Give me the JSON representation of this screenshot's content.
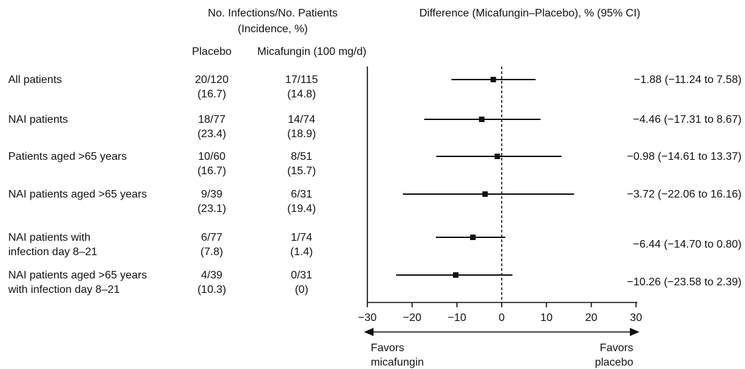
{
  "headers": {
    "counts_title_line1": "No. Infections/No. Patients",
    "counts_title_line2": "(Incidence, %)",
    "placebo": "Placebo",
    "micafungin": "Micafungin (100 mg/d)",
    "difference": "Difference (Micafungin–Placebo), % (95% CI)"
  },
  "rows": [
    {
      "label_lines": [
        "All patients"
      ],
      "placebo_count": "20/120",
      "placebo_pct": "(16.7)",
      "mica_count": "17/115",
      "mica_pct": "(14.8)",
      "ci_text": "−1.88 (−11.24 to 7.58)"
    },
    {
      "label_lines": [
        "NAI patients"
      ],
      "placebo_count": "18/77",
      "placebo_pct": "(23.4)",
      "mica_count": "14/74",
      "mica_pct": "(18.9)",
      "ci_text": "−4.46 (−17.31 to 8.67)"
    },
    {
      "label_lines": [
        "Patients aged >65 years"
      ],
      "placebo_count": "10/60",
      "placebo_pct": "(16.7)",
      "mica_count": "8/51",
      "mica_pct": "(15.7)",
      "ci_text": "−0.98 (−14.61 to 13.37)"
    },
    {
      "label_lines": [
        "NAI patients aged >65 years"
      ],
      "placebo_count": "9/39",
      "placebo_pct": "(23.1)",
      "mica_count": "6/31",
      "mica_pct": "(19.4)",
      "ci_text": "−3.72 (−22.06 to 16.16)"
    },
    {
      "label_lines": [
        "NAI patients with",
        "infection day 8–21"
      ],
      "placebo_count": "6/77",
      "placebo_pct": "(7.8)",
      "mica_count": "1/74",
      "mica_pct": "(1.4)",
      "ci_text": "−6.44 (−14.70 to 0.80)"
    },
    {
      "label_lines": [
        "NAI patients aged >65 years",
        "with infection day 8–21"
      ],
      "placebo_count": "4/39",
      "placebo_pct": "(10.3)",
      "mica_count": "0/31",
      "mica_pct": "(0)",
      "ci_text": "−10.26 (−23.58 to 2.39)"
    }
  ],
  "chart_data": {
    "type": "forest",
    "xlim": [
      -30,
      30
    ],
    "xticks": [
      -30,
      -20,
      -10,
      0,
      10,
      20,
      30
    ],
    "reference_line": 0,
    "categories": [
      "All patients",
      "NAI patients",
      "Patients aged >65 years",
      "NAI patients aged >65 years",
      "NAI patients with infection day 8–21",
      "NAI patients aged >65 years with infection day 8–21"
    ],
    "estimates": [
      -1.88,
      -4.46,
      -0.98,
      -3.72,
      -6.44,
      -10.26
    ],
    "ci_low": [
      -11.24,
      -17.31,
      -14.61,
      -22.06,
      -14.7,
      -23.58
    ],
    "ci_high": [
      7.58,
      8.67,
      13.37,
      16.16,
      0.8,
      2.39
    ],
    "favors_left": [
      "Favors",
      "micafungin"
    ],
    "favors_right": [
      "Favors",
      "placebo"
    ]
  }
}
